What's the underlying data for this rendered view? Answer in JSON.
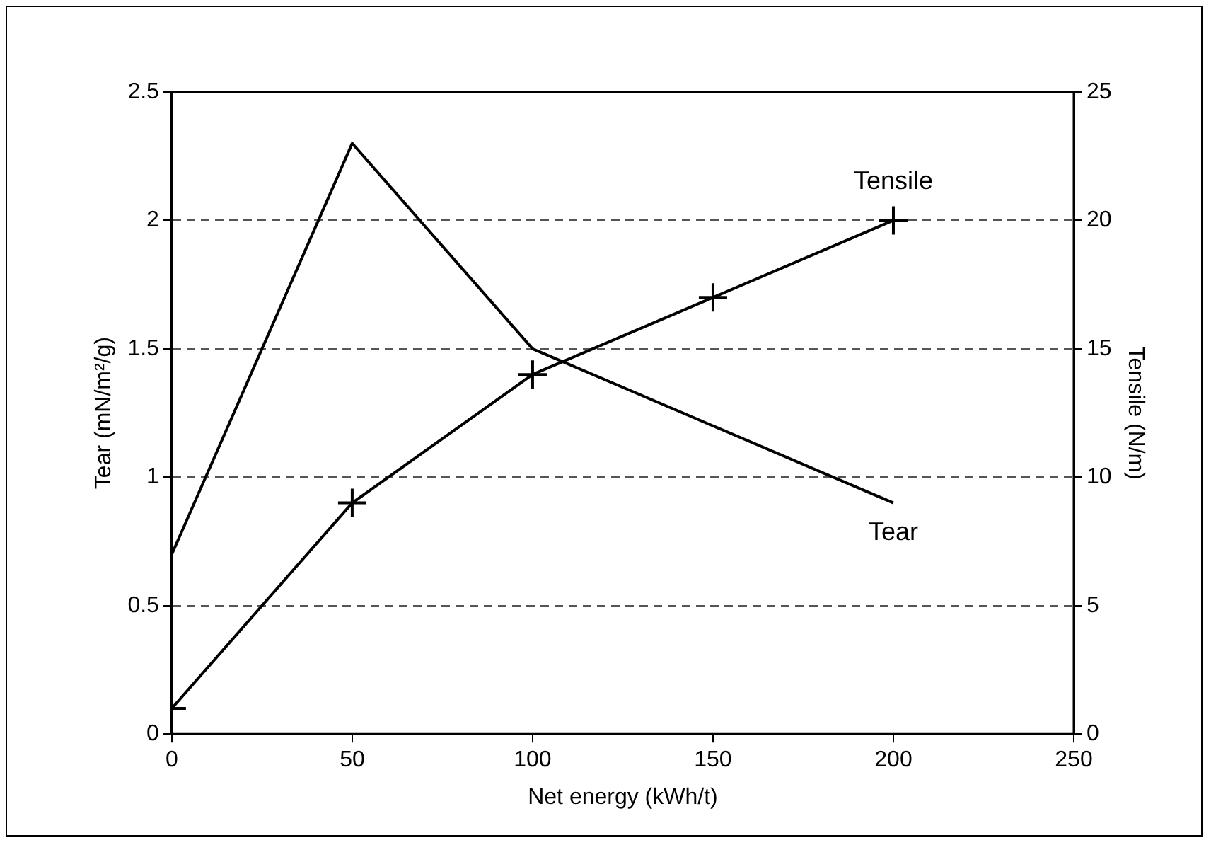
{
  "chart_data": {
    "type": "line",
    "xlabel": "Net energy (kWh/t)",
    "ylabel": "Tear (mN/m²/g)",
    "y2label": "Tensile (N/m)",
    "xlim": [
      0,
      250
    ],
    "xticks": [
      0,
      50,
      100,
      150,
      200,
      250
    ],
    "ylim": [
      0,
      2.5
    ],
    "yticks": [
      0,
      0.5,
      1,
      1.5,
      2,
      2.5
    ],
    "y2lim": [
      0,
      25
    ],
    "y2ticks": [
      0,
      5,
      10,
      15,
      20,
      25
    ],
    "grid": "y",
    "legend": false,
    "line_style": "solid",
    "series": [
      {
        "name": "Tear",
        "color": "#000000",
        "marker": "none",
        "x": [
          0,
          50,
          100,
          150,
          200
        ],
        "values": [
          0.7,
          2.3,
          1.5,
          1.2,
          0.9
        ]
      },
      {
        "name": "Tensile",
        "color": "#000000",
        "marker": "cross",
        "axis": "y2",
        "x": [
          0,
          50,
          100,
          150,
          200
        ],
        "values": [
          1,
          9,
          14,
          17,
          20
        ]
      }
    ]
  }
}
